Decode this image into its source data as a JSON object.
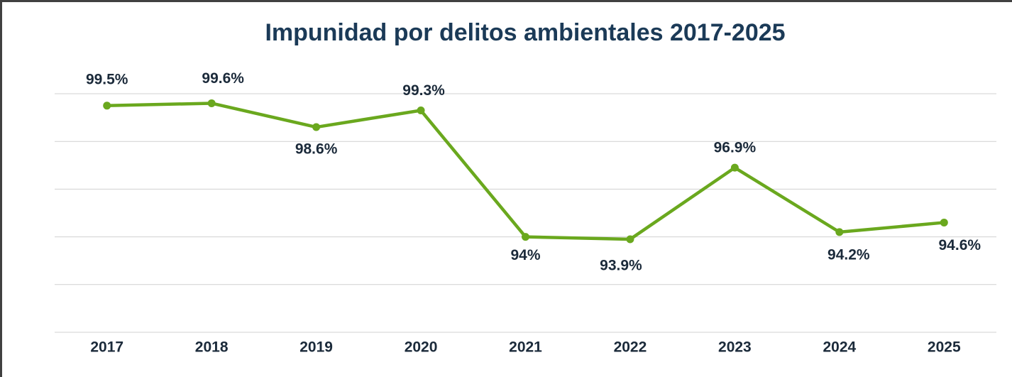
{
  "chart_data": {
    "type": "line",
    "title": "Impunidad por delitos ambientales 2017-2025",
    "categories": [
      "2017",
      "2018",
      "2019",
      "2020",
      "2021",
      "2022",
      "2023",
      "2024",
      "2025"
    ],
    "series": [
      {
        "color": "#6aa81e",
        "values": [
          99.5,
          99.6,
          98.6,
          99.3,
          94,
          93.9,
          96.9,
          94.2,
          94.6
        ],
        "value_labels": [
          "99.5%",
          "99.6%",
          "98.6%",
          "99.3%",
          "94%",
          "93.9%",
          "96.9%",
          "94.2%",
          "94.6%"
        ]
      }
    ],
    "ylim": [
      90,
      100
    ],
    "yticks": [
      90,
      92,
      94,
      96,
      98,
      100
    ],
    "grid": true
  }
}
